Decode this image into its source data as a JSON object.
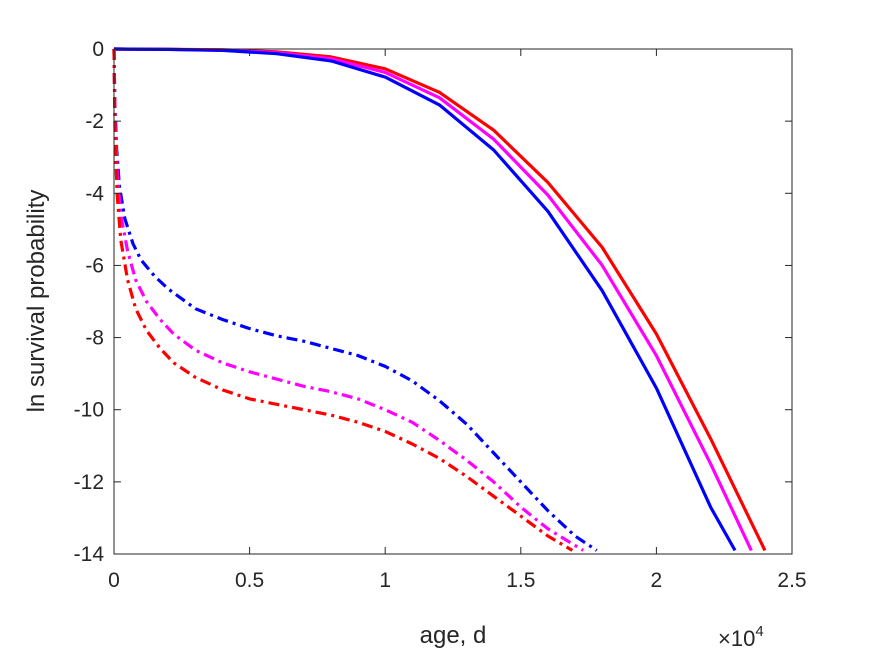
{
  "chart_data": {
    "type": "line",
    "title": "",
    "xlabel": "age, d",
    "ylabel": "ln survival probability",
    "x_multiplier_label": "×10",
    "x_multiplier_exponent": "4",
    "xlim": [
      0,
      2.5
    ],
    "ylim": [
      -14,
      0
    ],
    "x_ticks": [
      0,
      0.5,
      1,
      1.5,
      2,
      2.5
    ],
    "x_tick_labels": [
      "0",
      "0.5",
      "1",
      "1.5",
      "2",
      "2.5"
    ],
    "y_ticks": [
      0,
      -2,
      -4,
      -6,
      -8,
      -10,
      -12,
      -14
    ],
    "y_tick_labels": [
      "0",
      "-2",
      "-4",
      "-6",
      "-8",
      "-10",
      "-12",
      "-14"
    ],
    "grid": false,
    "legend": "none",
    "series": [
      {
        "color": "#ff0000",
        "style": "solid",
        "x": [
          0,
          0.2,
          0.4,
          0.6,
          0.8,
          1.0,
          1.2,
          1.4,
          1.6,
          1.8,
          2.0,
          2.2,
          2.4
        ],
        "y": [
          0,
          -0.01,
          -0.02,
          -0.08,
          -0.22,
          -0.55,
          -1.2,
          -2.25,
          -3.7,
          -5.5,
          -7.9,
          -10.8,
          -13.9
        ]
      },
      {
        "color": "#ff00ff",
        "style": "solid",
        "x": [
          0,
          0.2,
          0.4,
          0.6,
          0.8,
          1.0,
          1.2,
          1.4,
          1.6,
          1.8,
          2.0,
          2.2,
          2.35
        ],
        "y": [
          0,
          -0.01,
          -0.03,
          -0.1,
          -0.27,
          -0.65,
          -1.35,
          -2.5,
          -4.05,
          -6.0,
          -8.5,
          -11.5,
          -13.9
        ]
      },
      {
        "color": "#0000ff",
        "style": "solid",
        "x": [
          0,
          0.2,
          0.4,
          0.6,
          0.8,
          1.0,
          1.2,
          1.4,
          1.6,
          1.8,
          2.0,
          2.2,
          2.29
        ],
        "y": [
          0,
          -0.01,
          -0.04,
          -0.13,
          -0.33,
          -0.78,
          -1.55,
          -2.8,
          -4.5,
          -6.7,
          -9.4,
          -12.7,
          -13.9
        ]
      },
      {
        "color": "#0000ff",
        "style": "dashdot",
        "x": [
          0,
          0.003,
          0.01,
          0.02,
          0.04,
          0.07,
          0.1,
          0.15,
          0.2,
          0.3,
          0.4,
          0.5,
          0.6,
          0.7,
          0.8,
          0.9,
          1.0,
          1.1,
          1.2,
          1.3,
          1.4,
          1.5,
          1.6,
          1.7,
          1.78
        ],
        "y": [
          0,
          -1.5,
          -2.8,
          -3.8,
          -4.7,
          -5.4,
          -5.85,
          -6.3,
          -6.65,
          -7.2,
          -7.5,
          -7.75,
          -7.95,
          -8.1,
          -8.3,
          -8.5,
          -8.8,
          -9.2,
          -9.75,
          -10.4,
          -11.2,
          -12.0,
          -12.8,
          -13.5,
          -13.9
        ]
      },
      {
        "color": "#ff00ff",
        "style": "dashdot",
        "x": [
          0,
          0.004,
          0.012,
          0.025,
          0.05,
          0.08,
          0.12,
          0.17,
          0.22,
          0.3,
          0.4,
          0.5,
          0.6,
          0.7,
          0.8,
          0.9,
          1.0,
          1.1,
          1.2,
          1.3,
          1.4,
          1.5,
          1.6,
          1.73
        ],
        "y": [
          0,
          -2.0,
          -3.5,
          -4.6,
          -5.6,
          -6.4,
          -7.0,
          -7.5,
          -7.9,
          -8.35,
          -8.7,
          -8.95,
          -9.15,
          -9.35,
          -9.5,
          -9.7,
          -10.0,
          -10.35,
          -10.85,
          -11.4,
          -12.0,
          -12.7,
          -13.3,
          -13.9
        ]
      },
      {
        "color": "#ff0000",
        "style": "dashdot",
        "x": [
          0,
          0.004,
          0.012,
          0.025,
          0.05,
          0.08,
          0.12,
          0.17,
          0.22,
          0.3,
          0.4,
          0.5,
          0.6,
          0.7,
          0.8,
          0.9,
          1.0,
          1.1,
          1.2,
          1.3,
          1.4,
          1.5,
          1.6,
          1.69
        ],
        "y": [
          0,
          -2.5,
          -4.1,
          -5.3,
          -6.4,
          -7.2,
          -7.8,
          -8.3,
          -8.7,
          -9.1,
          -9.45,
          -9.7,
          -9.85,
          -10.0,
          -10.15,
          -10.35,
          -10.6,
          -10.95,
          -11.35,
          -11.85,
          -12.4,
          -12.95,
          -13.5,
          -13.9
        ]
      }
    ]
  }
}
